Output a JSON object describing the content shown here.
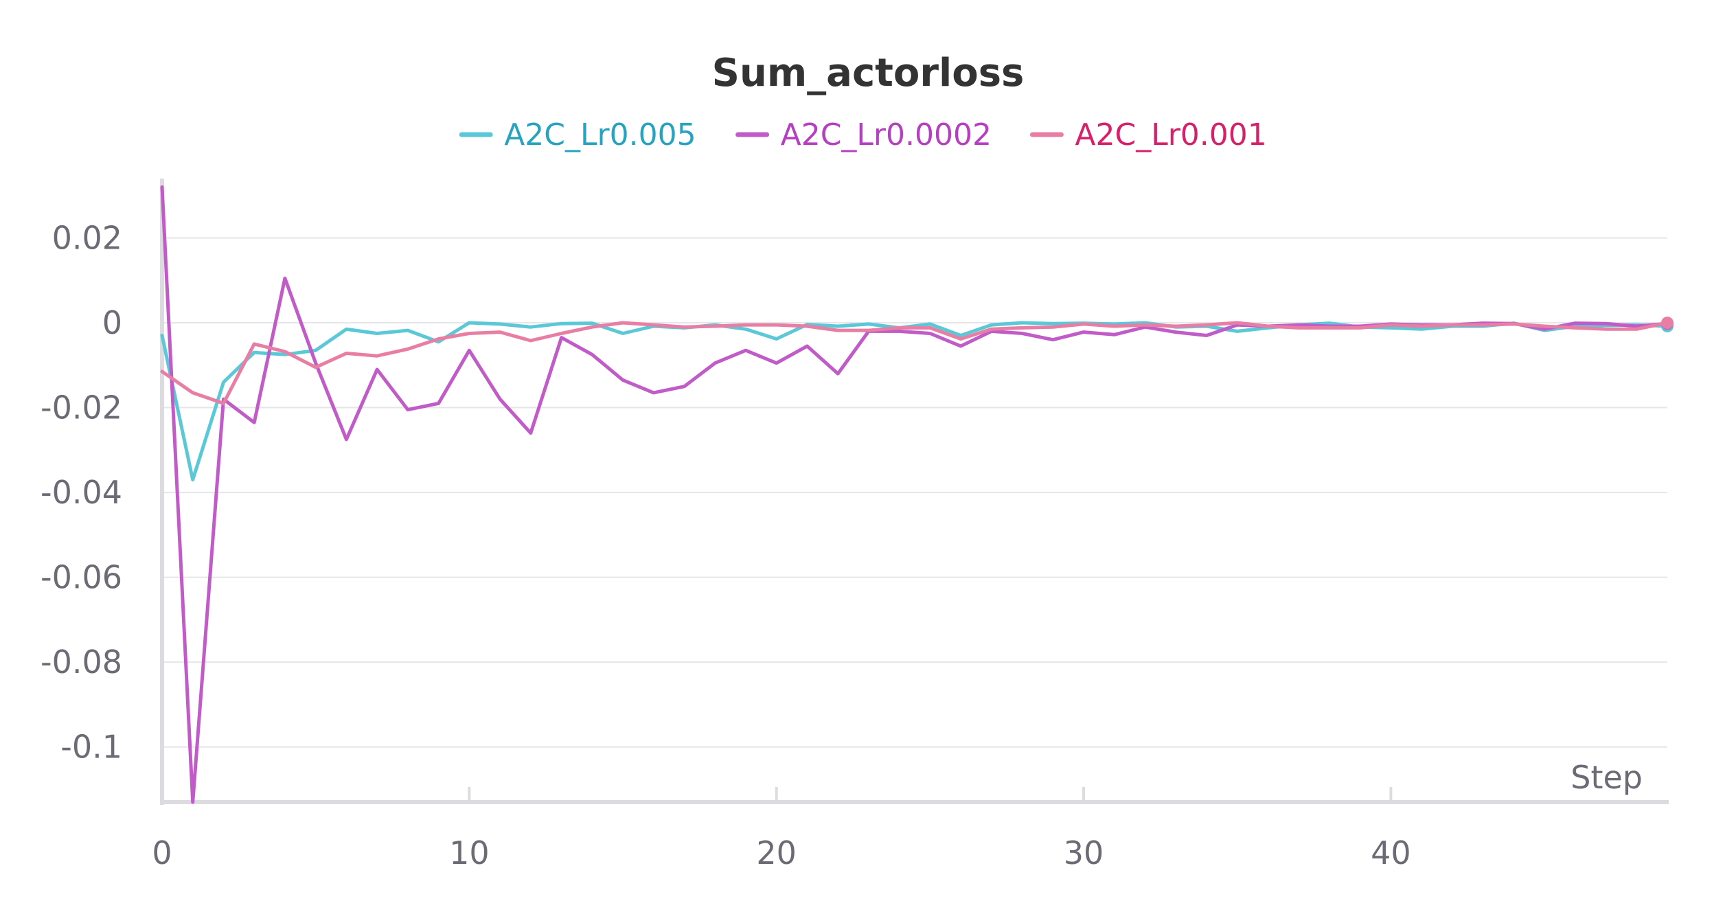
{
  "chart_data": {
    "type": "line",
    "title": "Sum_actorloss",
    "xlabel": "Step",
    "ylabel": "",
    "xlim": [
      0,
      49
    ],
    "ylim": [
      -0.113,
      0.034
    ],
    "xticks": [
      0,
      10,
      20,
      30,
      40
    ],
    "yticks": [
      0.02,
      0,
      -0.02,
      -0.04,
      -0.06,
      -0.08,
      -0.1
    ],
    "ytick_labels": [
      "0.02",
      "0",
      "-0.02",
      "-0.04",
      "-0.06",
      "-0.08",
      "-0.1"
    ],
    "grid": "horizontal",
    "legend_position": "top-center",
    "series": [
      {
        "name": "A2C_Lr0.005",
        "color": "#5bc8d8",
        "legend_text_color": "#27a3c0",
        "values": [
          -0.003,
          -0.037,
          -0.014,
          -0.007,
          -0.0075,
          -0.0065,
          -0.0015,
          -0.0025,
          -0.0018,
          -0.0045,
          0.0,
          -0.0003,
          -0.001,
          -0.0002,
          -0.0001,
          -0.0025,
          -0.0008,
          -0.0012,
          -0.0005,
          -0.0015,
          -0.0038,
          -0.0004,
          -0.0008,
          -0.0003,
          -0.0012,
          -0.0003,
          -0.003,
          -0.0005,
          0.0,
          -0.0002,
          -0.0001,
          -0.0003,
          0.0,
          -0.001,
          -0.0008,
          -0.002,
          -0.0012,
          -0.0005,
          -0.0001,
          -0.001,
          -0.0012,
          -0.0015,
          -0.0008,
          -0.0008,
          -0.0001,
          -0.0018,
          -0.0008,
          -0.0006,
          -0.0005,
          -0.0008
        ]
      },
      {
        "name": "A2C_Lr0.0002",
        "color": "#c15bc8",
        "legend_text_color": "#b53fc0",
        "values": [
          0.032,
          -0.113,
          -0.018,
          -0.0235,
          0.0105,
          -0.0095,
          -0.0275,
          -0.011,
          -0.0205,
          -0.019,
          -0.0065,
          -0.018,
          -0.026,
          -0.0035,
          -0.0075,
          -0.0135,
          -0.0165,
          -0.015,
          -0.0095,
          -0.0065,
          -0.0095,
          -0.0055,
          -0.012,
          -0.002,
          -0.002,
          -0.0025,
          -0.0055,
          -0.002,
          -0.0025,
          -0.004,
          -0.0022,
          -0.0028,
          -0.001,
          -0.0022,
          -0.003,
          -0.0005,
          -0.0008,
          -0.0005,
          -0.0008,
          -0.0008,
          -0.0003,
          -0.0005,
          -0.0005,
          -0.0001,
          -0.0002,
          -0.0015,
          -0.0001,
          -0.0002,
          -0.0008,
          -0.0002
        ]
      },
      {
        "name": "A2C_Lr0.001",
        "color": "#e97ea4",
        "legend_text_color": "#d6206a",
        "values": [
          -0.0115,
          -0.0165,
          -0.019,
          -0.005,
          -0.0068,
          -0.0105,
          -0.0072,
          -0.0078,
          -0.0062,
          -0.0038,
          -0.0025,
          -0.0022,
          -0.0042,
          -0.0025,
          -0.001,
          0.0,
          -0.0005,
          -0.001,
          -0.0008,
          -0.0005,
          -0.0005,
          -0.0008,
          -0.0018,
          -0.0018,
          -0.0012,
          -0.0012,
          -0.0038,
          -0.0015,
          -0.0012,
          -0.001,
          -0.0003,
          -0.0008,
          -0.0005,
          -0.0008,
          -0.0005,
          0.0,
          -0.0008,
          -0.0012,
          -0.0012,
          -0.0012,
          -0.0005,
          -0.0008,
          -0.0005,
          -0.0005,
          -0.0003,
          -0.0008,
          -0.0012,
          -0.0015,
          -0.0015,
          0.0
        ]
      }
    ]
  }
}
